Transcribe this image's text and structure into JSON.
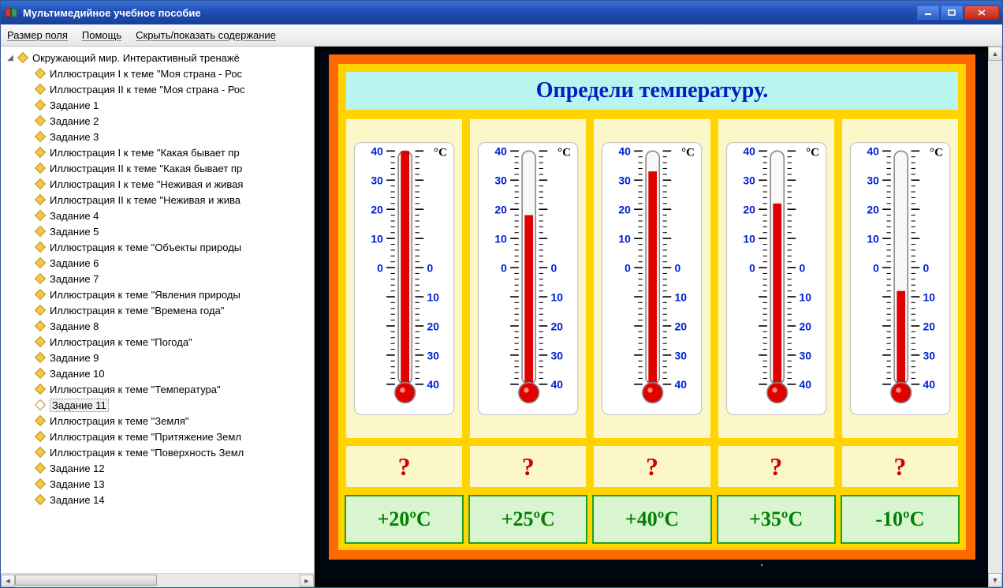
{
  "window": {
    "title": "Мультимедийное учебное пособие"
  },
  "menu": {
    "field_size": "Размер поля",
    "help": "Помощь",
    "toggle_toc": "Скрыть/показать содержание"
  },
  "tree": {
    "root": "Окружающий мир. Интерактивный тренажё",
    "selected_index": 21,
    "items": [
      "Иллюстрация I к теме \"Моя страна - Рос",
      "Иллюстрация II к теме \"Моя страна - Рос",
      "Задание 1",
      "Задание 2",
      "Задание 3",
      "Иллюстрация I к теме \"Какая бывает пр",
      "Иллюстрация II к теме \"Какая бывает пр",
      "Иллюстрация I к теме \"Неживая и живая",
      "Иллюстрация II к теме \"Неживая и жива",
      "Задание 4",
      "Задание 5",
      "Иллюстрация к теме \"Объекты природы",
      "Задание 6",
      "Задание 7",
      "Иллюстрация к теме \"Явления природы",
      "Иллюстрация к теме \"Времена года\"",
      "Задание 8",
      "Иллюстрация к теме \"Погода\"",
      "Задание 9",
      "Задание 10",
      "Иллюстрация к теме \"Температура\"",
      "Задание 11",
      "Иллюстрация к теме \"Земля\"",
      "Иллюстрация к теме \"Притяжение Земл",
      "Иллюстрация к теме \"Поверхность Земл",
      "Задание 12",
      "Задание 13",
      "Задание 14"
    ]
  },
  "slide": {
    "title": "Определи температуру.",
    "question_mark": "?",
    "unit_label": "°C",
    "scale": {
      "max": 40,
      "min": -40,
      "major_step": 10
    },
    "thermometers": [
      {
        "value": 40,
        "fill_color": "#e00000"
      },
      {
        "value": 18,
        "fill_color": "#e00000"
      },
      {
        "value": 33,
        "fill_color": "#e00000"
      },
      {
        "value": 22,
        "fill_color": "#e00000"
      },
      {
        "value": -8,
        "fill_color": "#e00000"
      }
    ],
    "answers": [
      "+20ºC",
      "+25ºC",
      "+40ºC",
      "+35ºC",
      "-10ºC"
    ],
    "colors": {
      "frame_outer": "#ff6a00",
      "frame_inner": "#ffd400",
      "title_bg": "#b8f5f0",
      "title_text": "#0020c0",
      "cell_bg": "#fbf7c8",
      "question_text": "#d00000",
      "answer_bg": "#d8f5d0",
      "answer_border": "#20a020",
      "answer_text": "#008000",
      "mercury": "#e00000",
      "bulb": "#e00000",
      "tube_border": "#888888",
      "scale_text": "#0020d0"
    }
  }
}
